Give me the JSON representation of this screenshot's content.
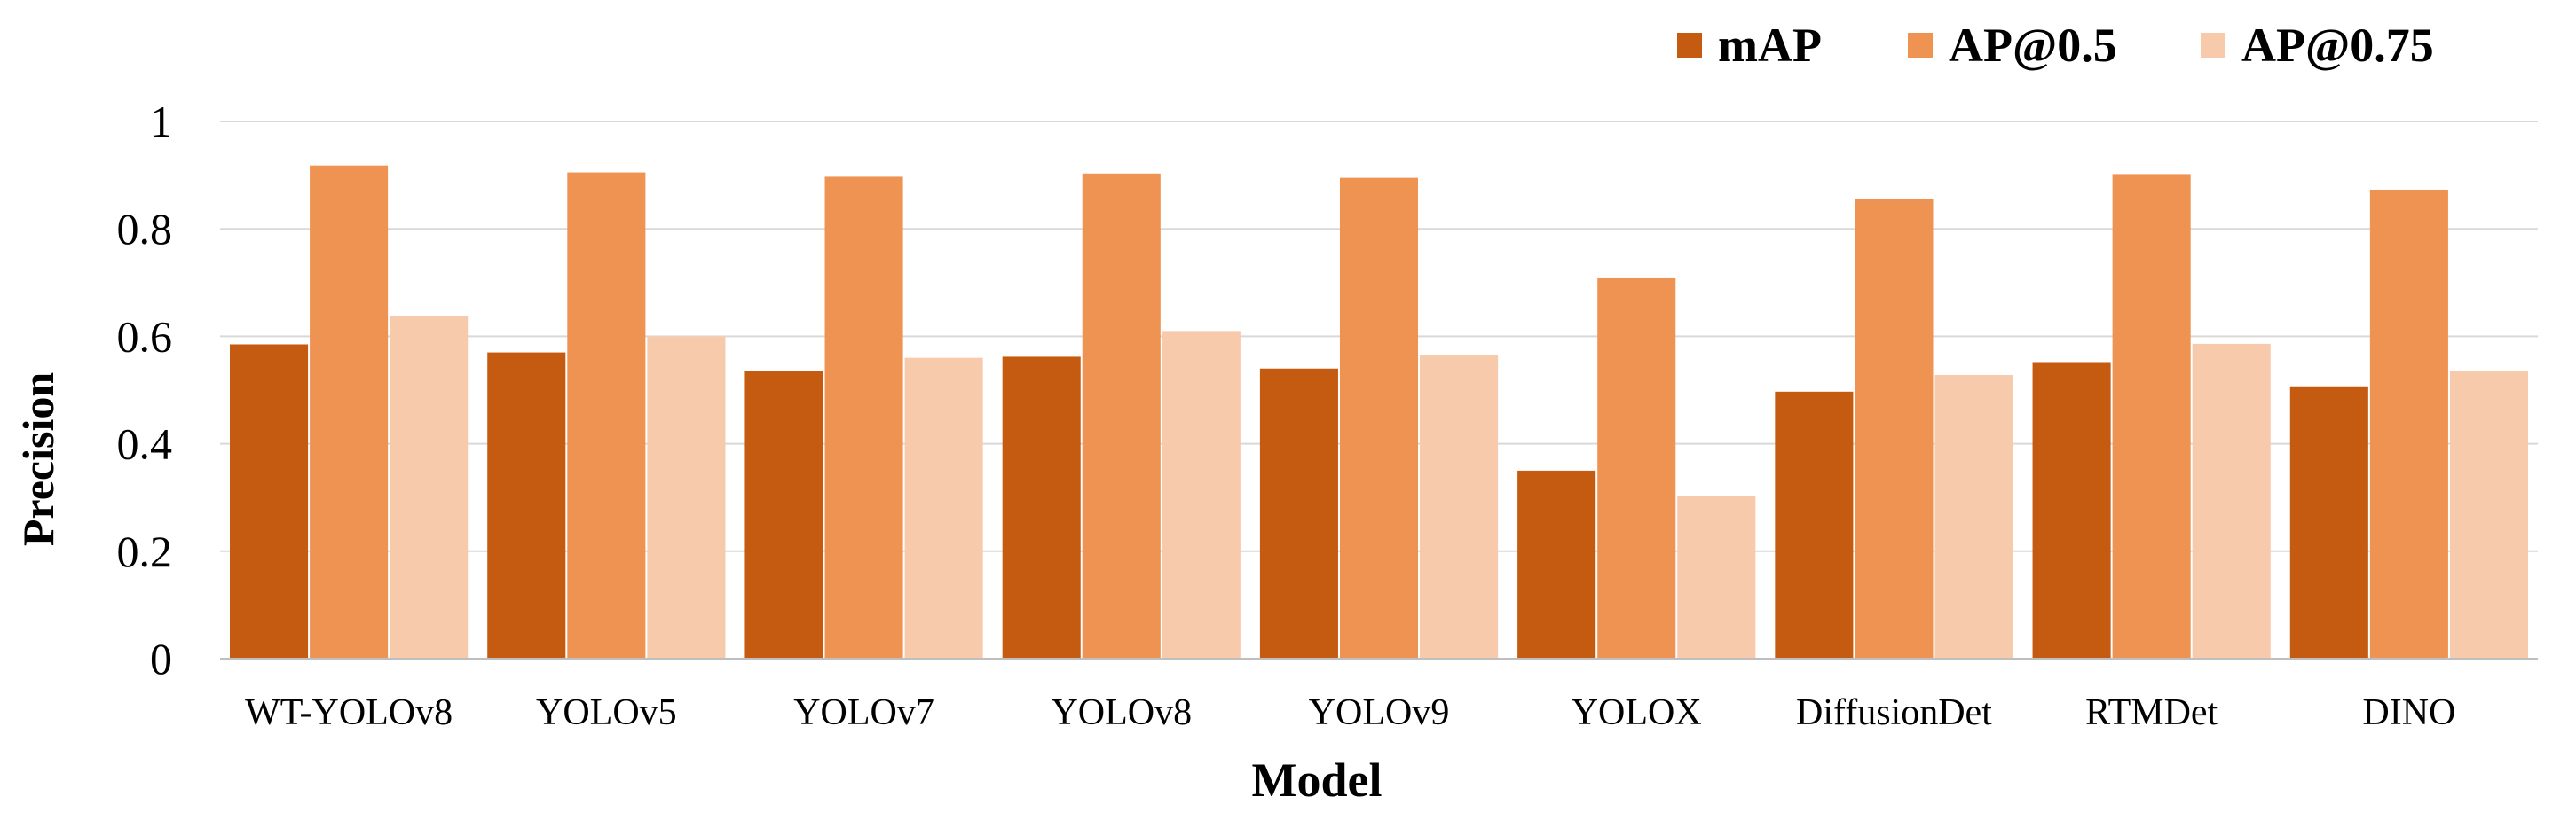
{
  "chart_data": {
    "type": "bar",
    "title": "",
    "xlabel": "Model",
    "ylabel": "Precision",
    "ylim": [
      0,
      1
    ],
    "yticks": [
      0,
      0.2,
      0.4,
      0.6,
      0.8,
      1
    ],
    "ytick_labels": [
      "0",
      "0.2",
      "0.4",
      "0.6",
      "0.8",
      "1"
    ],
    "grid": true,
    "legend_position": "top-right",
    "categories": [
      "WT-YOLOv8",
      "YOLOv5",
      "YOLOv7",
      "YOLOv8",
      "YOLOv9",
      "YOLOX",
      "DiffusionDet",
      "RTMDet",
      "DINO"
    ],
    "series": [
      {
        "name": "mAP",
        "color": "#c55a11",
        "values": [
          0.585,
          0.57,
          0.535,
          0.562,
          0.54,
          0.35,
          0.497,
          0.552,
          0.507
        ]
      },
      {
        "name": "AP@0.5",
        "color": "#ef9353",
        "values": [
          0.918,
          0.905,
          0.897,
          0.903,
          0.895,
          0.708,
          0.855,
          0.902,
          0.873
        ]
      },
      {
        "name": "AP@0.75",
        "color": "#f7caac",
        "values": [
          0.637,
          0.6,
          0.56,
          0.61,
          0.565,
          0.302,
          0.528,
          0.586,
          0.535
        ]
      }
    ]
  }
}
